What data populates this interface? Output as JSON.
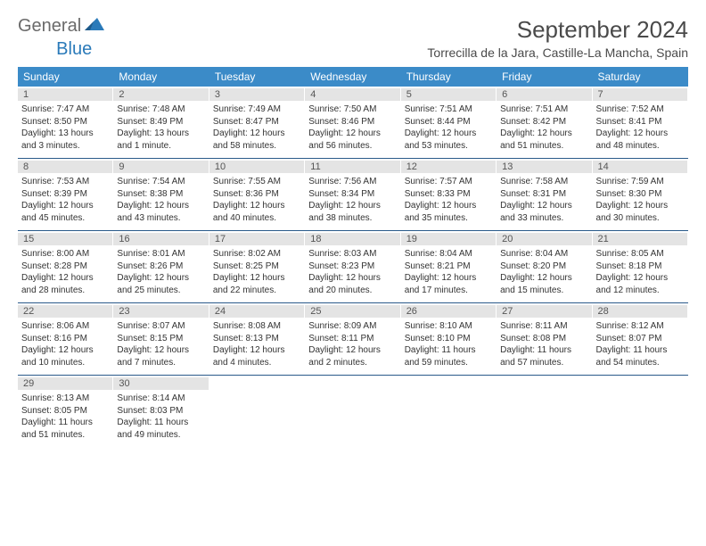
{
  "logo": {
    "part1": "General",
    "part2": "Blue",
    "tri_color": "#2a7ab9"
  },
  "title": "September 2024",
  "location": "Torrecilla de la Jara, Castille-La Mancha, Spain",
  "colors": {
    "header_bg": "#3b8bc8",
    "header_text": "#ffffff",
    "daynum_bg": "#e4e4e4",
    "week_border": "#2a5a8a",
    "text": "#333333"
  },
  "day_names": [
    "Sunday",
    "Monday",
    "Tuesday",
    "Wednesday",
    "Thursday",
    "Friday",
    "Saturday"
  ],
  "weeks": [
    [
      {
        "n": "1",
        "sr": "7:47 AM",
        "ss": "8:50 PM",
        "dl": "13 hours and 3 minutes."
      },
      {
        "n": "2",
        "sr": "7:48 AM",
        "ss": "8:49 PM",
        "dl": "13 hours and 1 minute."
      },
      {
        "n": "3",
        "sr": "7:49 AM",
        "ss": "8:47 PM",
        "dl": "12 hours and 58 minutes."
      },
      {
        "n": "4",
        "sr": "7:50 AM",
        "ss": "8:46 PM",
        "dl": "12 hours and 56 minutes."
      },
      {
        "n": "5",
        "sr": "7:51 AM",
        "ss": "8:44 PM",
        "dl": "12 hours and 53 minutes."
      },
      {
        "n": "6",
        "sr": "7:51 AM",
        "ss": "8:42 PM",
        "dl": "12 hours and 51 minutes."
      },
      {
        "n": "7",
        "sr": "7:52 AM",
        "ss": "8:41 PM",
        "dl": "12 hours and 48 minutes."
      }
    ],
    [
      {
        "n": "8",
        "sr": "7:53 AM",
        "ss": "8:39 PM",
        "dl": "12 hours and 45 minutes."
      },
      {
        "n": "9",
        "sr": "7:54 AM",
        "ss": "8:38 PM",
        "dl": "12 hours and 43 minutes."
      },
      {
        "n": "10",
        "sr": "7:55 AM",
        "ss": "8:36 PM",
        "dl": "12 hours and 40 minutes."
      },
      {
        "n": "11",
        "sr": "7:56 AM",
        "ss": "8:34 PM",
        "dl": "12 hours and 38 minutes."
      },
      {
        "n": "12",
        "sr": "7:57 AM",
        "ss": "8:33 PM",
        "dl": "12 hours and 35 minutes."
      },
      {
        "n": "13",
        "sr": "7:58 AM",
        "ss": "8:31 PM",
        "dl": "12 hours and 33 minutes."
      },
      {
        "n": "14",
        "sr": "7:59 AM",
        "ss": "8:30 PM",
        "dl": "12 hours and 30 minutes."
      }
    ],
    [
      {
        "n": "15",
        "sr": "8:00 AM",
        "ss": "8:28 PM",
        "dl": "12 hours and 28 minutes."
      },
      {
        "n": "16",
        "sr": "8:01 AM",
        "ss": "8:26 PM",
        "dl": "12 hours and 25 minutes."
      },
      {
        "n": "17",
        "sr": "8:02 AM",
        "ss": "8:25 PM",
        "dl": "12 hours and 22 minutes."
      },
      {
        "n": "18",
        "sr": "8:03 AM",
        "ss": "8:23 PM",
        "dl": "12 hours and 20 minutes."
      },
      {
        "n": "19",
        "sr": "8:04 AM",
        "ss": "8:21 PM",
        "dl": "12 hours and 17 minutes."
      },
      {
        "n": "20",
        "sr": "8:04 AM",
        "ss": "8:20 PM",
        "dl": "12 hours and 15 minutes."
      },
      {
        "n": "21",
        "sr": "8:05 AM",
        "ss": "8:18 PM",
        "dl": "12 hours and 12 minutes."
      }
    ],
    [
      {
        "n": "22",
        "sr": "8:06 AM",
        "ss": "8:16 PM",
        "dl": "12 hours and 10 minutes."
      },
      {
        "n": "23",
        "sr": "8:07 AM",
        "ss": "8:15 PM",
        "dl": "12 hours and 7 minutes."
      },
      {
        "n": "24",
        "sr": "8:08 AM",
        "ss": "8:13 PM",
        "dl": "12 hours and 4 minutes."
      },
      {
        "n": "25",
        "sr": "8:09 AM",
        "ss": "8:11 PM",
        "dl": "12 hours and 2 minutes."
      },
      {
        "n": "26",
        "sr": "8:10 AM",
        "ss": "8:10 PM",
        "dl": "11 hours and 59 minutes."
      },
      {
        "n": "27",
        "sr": "8:11 AM",
        "ss": "8:08 PM",
        "dl": "11 hours and 57 minutes."
      },
      {
        "n": "28",
        "sr": "8:12 AM",
        "ss": "8:07 PM",
        "dl": "11 hours and 54 minutes."
      }
    ],
    [
      {
        "n": "29",
        "sr": "8:13 AM",
        "ss": "8:05 PM",
        "dl": "11 hours and 51 minutes."
      },
      {
        "n": "30",
        "sr": "8:14 AM",
        "ss": "8:03 PM",
        "dl": "11 hours and 49 minutes."
      },
      null,
      null,
      null,
      null,
      null
    ]
  ],
  "labels": {
    "sunrise": "Sunrise:",
    "sunset": "Sunset:",
    "daylight": "Daylight:"
  }
}
